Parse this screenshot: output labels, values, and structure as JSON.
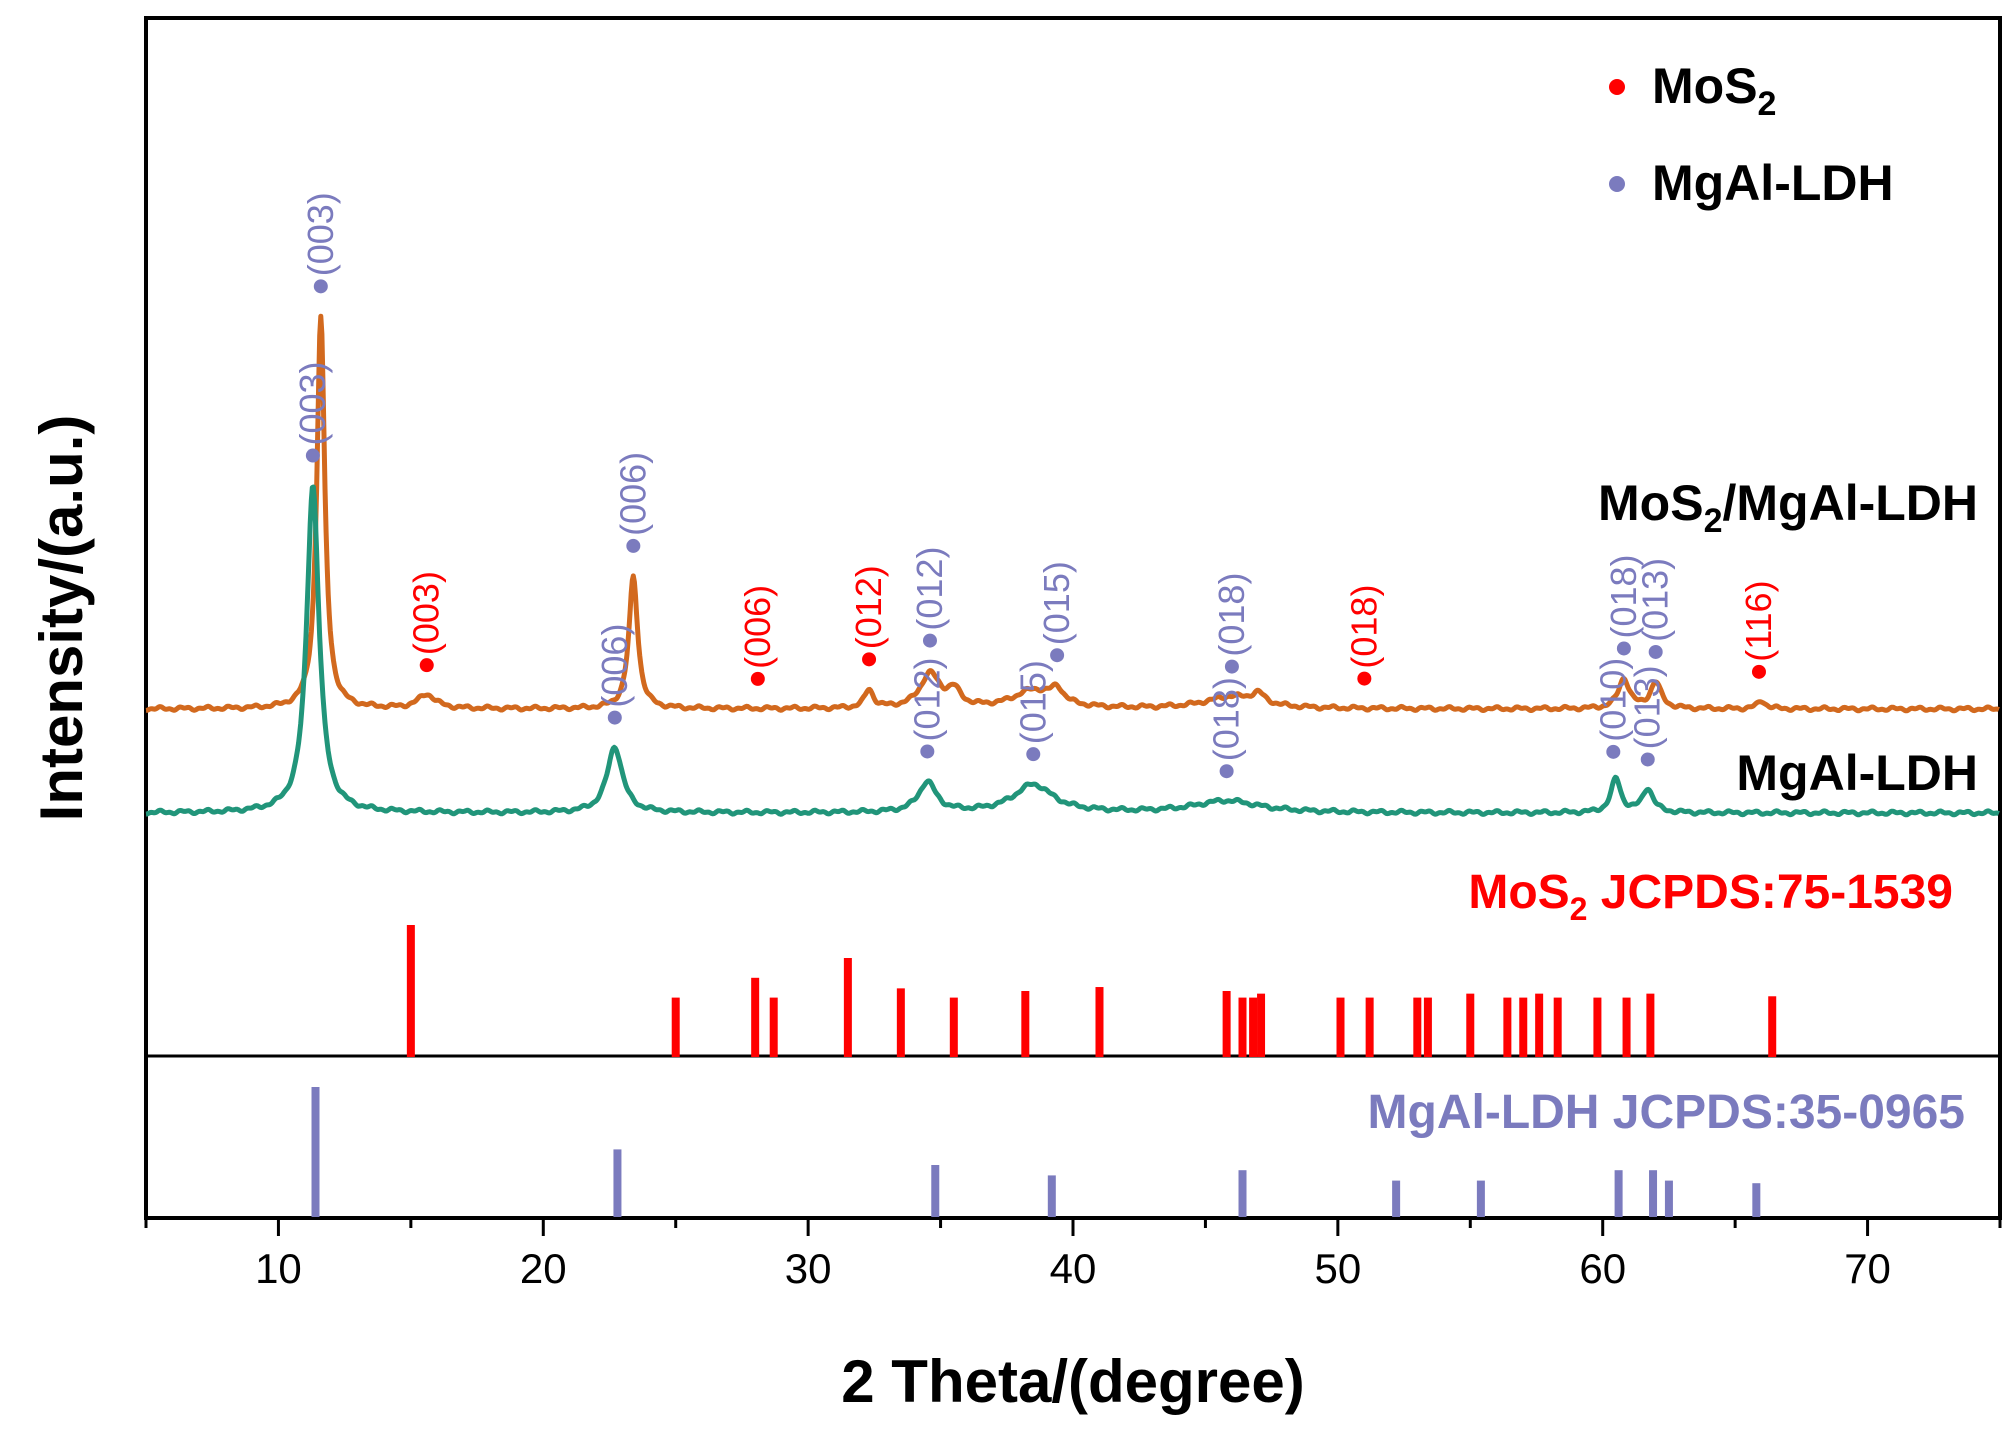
{
  "chart_data": {
    "type": "line",
    "xlabel": "2 Theta/(degree)",
    "ylabel": "Intensity/(a.u.)",
    "xlim": [
      5,
      75
    ],
    "xticks": [
      10,
      20,
      30,
      40,
      50,
      60,
      70
    ],
    "colors": {
      "composite": "#D2691E",
      "ldh": "#21957A",
      "mos2": "#FF0000",
      "ldh_marker": "#7B7BBE"
    },
    "legend": {
      "placement": "top-right",
      "entries": [
        {
          "base": "MoS",
          "sub": "2",
          "color": "#FF0000"
        },
        {
          "base": "MgAl-LDH",
          "sub": "",
          "color": "#7B7BBE"
        }
      ]
    },
    "series": [
      {
        "name_parts": [
          "MoS",
          "2",
          "/MgAl-LDH"
        ],
        "color": "#D2691E",
        "baseline": 2.6,
        "peaks": [
          {
            "x": 11.6,
            "h": 9.8,
            "w": 0.18
          },
          {
            "x": 15.6,
            "h": 0.35,
            "w": 0.4
          },
          {
            "x": 23.4,
            "h": 3.3,
            "w": 0.2
          },
          {
            "x": 32.3,
            "h": 0.45,
            "w": 0.2
          },
          {
            "x": 34.6,
            "h": 0.85,
            "w": 0.45
          },
          {
            "x": 35.5,
            "h": 0.4,
            "w": 0.3
          },
          {
            "x": 38.5,
            "h": 0.45,
            "w": 0.9
          },
          {
            "x": 39.4,
            "h": 0.35,
            "w": 0.3
          },
          {
            "x": 46.0,
            "h": 0.3,
            "w": 1.2
          },
          {
            "x": 47.0,
            "h": 0.25,
            "w": 0.3
          },
          {
            "x": 60.8,
            "h": 0.75,
            "w": 0.25
          },
          {
            "x": 62.0,
            "h": 0.65,
            "w": 0.25
          },
          {
            "x": 66.0,
            "h": 0.2,
            "w": 0.2
          }
        ],
        "markers": [
          {
            "x": 11.6,
            "phase": "MgAl-LDH",
            "hkl": "(003)"
          },
          {
            "x": 15.6,
            "phase": "MoS2",
            "hkl": "(003)"
          },
          {
            "x": 23.4,
            "phase": "MgAl-LDH",
            "hkl": "(006)"
          },
          {
            "x": 28.1,
            "phase": "MoS2",
            "hkl": "(006)"
          },
          {
            "x": 32.3,
            "phase": "MoS2",
            "hkl": "(012)"
          },
          {
            "x": 34.6,
            "phase": "MgAl-LDH",
            "hkl": "(012)"
          },
          {
            "x": 39.4,
            "phase": "MgAl-LDH",
            "hkl": "(015)"
          },
          {
            "x": 46.0,
            "phase": "MgAl-LDH",
            "hkl": "(018)"
          },
          {
            "x": 51.0,
            "phase": "MoS2",
            "hkl": "(018)"
          },
          {
            "x": 60.8,
            "phase": "MgAl-LDH",
            "hkl": "(018)"
          },
          {
            "x": 62.0,
            "phase": "MgAl-LDH",
            "hkl": "(013)"
          },
          {
            "x": 65.9,
            "phase": "MoS2",
            "hkl": "(116)"
          }
        ]
      },
      {
        "name_parts": [
          "MgAl-LDH",
          "",
          ""
        ],
        "color": "#21957A",
        "baseline": 0,
        "peaks": [
          {
            "x": 11.3,
            "h": 8.2,
            "w": 0.28
          },
          {
            "x": 22.7,
            "h": 1.65,
            "w": 0.35
          },
          {
            "x": 34.5,
            "h": 0.75,
            "w": 0.4
          },
          {
            "x": 38.5,
            "h": 0.7,
            "w": 0.9
          },
          {
            "x": 45.8,
            "h": 0.3,
            "w": 1.5
          },
          {
            "x": 60.5,
            "h": 0.85,
            "w": 0.22
          },
          {
            "x": 61.7,
            "h": 0.6,
            "w": 0.25
          }
        ],
        "markers": [
          {
            "x": 11.3,
            "phase": "MgAl-LDH",
            "hkl": "(003)"
          },
          {
            "x": 22.7,
            "phase": "MgAl-LDH",
            "hkl": "(006)"
          },
          {
            "x": 34.5,
            "phase": "MgAl-LDH",
            "hkl": "(012)"
          },
          {
            "x": 38.5,
            "phase": "MgAl-LDH",
            "hkl": "(015)"
          },
          {
            "x": 45.8,
            "phase": "MgAl-LDH",
            "hkl": "(018)"
          },
          {
            "x": 60.4,
            "phase": "MgAl-LDH",
            "hkl": "(010)"
          },
          {
            "x": 61.7,
            "phase": "MgAl-LDH",
            "hkl": "(013)"
          }
        ]
      }
    ],
    "references": [
      {
        "title_parts": [
          "MoS",
          "2",
          "  JCPDS:75-1539"
        ],
        "color": "#FF0000",
        "lines": [
          {
            "x": 15.0,
            "h": 1.0
          },
          {
            "x": 25.0,
            "h": 0.45
          },
          {
            "x": 28.0,
            "h": 0.6
          },
          {
            "x": 28.7,
            "h": 0.45
          },
          {
            "x": 31.5,
            "h": 0.75
          },
          {
            "x": 33.5,
            "h": 0.52
          },
          {
            "x": 35.5,
            "h": 0.45
          },
          {
            "x": 38.2,
            "h": 0.5
          },
          {
            "x": 41.0,
            "h": 0.53
          },
          {
            "x": 45.8,
            "h": 0.5
          },
          {
            "x": 46.4,
            "h": 0.45
          },
          {
            "x": 46.8,
            "h": 0.45
          },
          {
            "x": 47.1,
            "h": 0.48
          },
          {
            "x": 50.1,
            "h": 0.45
          },
          {
            "x": 51.2,
            "h": 0.45
          },
          {
            "x": 53.0,
            "h": 0.45
          },
          {
            "x": 53.4,
            "h": 0.45
          },
          {
            "x": 55.0,
            "h": 0.48
          },
          {
            "x": 56.4,
            "h": 0.45
          },
          {
            "x": 57.0,
            "h": 0.45
          },
          {
            "x": 57.6,
            "h": 0.48
          },
          {
            "x": 58.3,
            "h": 0.45
          },
          {
            "x": 59.8,
            "h": 0.45
          },
          {
            "x": 60.9,
            "h": 0.45
          },
          {
            "x": 61.8,
            "h": 0.48
          },
          {
            "x": 66.4,
            "h": 0.46
          }
        ]
      },
      {
        "title_parts": [
          "MgAl-LDH JCPDS:35-0965",
          "",
          ""
        ],
        "color": "#7B7BBE",
        "lines": [
          {
            "x": 11.4,
            "h": 1.0
          },
          {
            "x": 22.8,
            "h": 0.52
          },
          {
            "x": 34.8,
            "h": 0.4
          },
          {
            "x": 39.2,
            "h": 0.32
          },
          {
            "x": 46.4,
            "h": 0.36
          },
          {
            "x": 52.2,
            "h": 0.28
          },
          {
            "x": 55.4,
            "h": 0.28
          },
          {
            "x": 60.6,
            "h": 0.36
          },
          {
            "x": 61.9,
            "h": 0.36
          },
          {
            "x": 62.5,
            "h": 0.28
          },
          {
            "x": 65.8,
            "h": 0.26
          }
        ]
      }
    ]
  }
}
